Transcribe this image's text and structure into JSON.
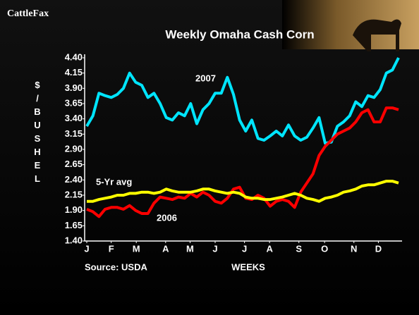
{
  "logo": "CattleFax",
  "chart_data": {
    "type": "line",
    "title": "Weekly Omaha Cash Corn",
    "y_label": "$/BUSHEL",
    "x_label": "WEEKS",
    "source": "Source: USDA",
    "annotations": [
      "2007",
      "2006",
      "5-Yr avg"
    ],
    "x": [
      1,
      2,
      3,
      4,
      5,
      6,
      7,
      8,
      9,
      10,
      11,
      12,
      13,
      14,
      15,
      16,
      17,
      18,
      19,
      20,
      21,
      22,
      23,
      24,
      25,
      26,
      27,
      28,
      29,
      30,
      31,
      32,
      33,
      34,
      35,
      36,
      37,
      38,
      39,
      40,
      41,
      42,
      43,
      44,
      45,
      46,
      47,
      48,
      49,
      50,
      51,
      52
    ],
    "xlim": [
      1,
      52
    ],
    "xticks": [
      {
        "value": 1,
        "label": "J"
      },
      {
        "value": 5.0,
        "label": "F"
      },
      {
        "value": 9.1,
        "label": "M"
      },
      {
        "value": 13.9,
        "label": "A"
      },
      {
        "value": 17.9,
        "label": "M"
      },
      {
        "value": 22.0,
        "label": "J"
      },
      {
        "value": 26.8,
        "label": "J"
      },
      {
        "value": 30.9,
        "label": "A"
      },
      {
        "value": 35.7,
        "label": "S"
      },
      {
        "value": 39.9,
        "label": "O"
      },
      {
        "value": 44.7,
        "label": "N"
      },
      {
        "value": 48.7,
        "label": "D"
      }
    ],
    "ylim": [
      1.4,
      4.4
    ],
    "yticks": [
      {
        "value": 1.4,
        "label": "1.40"
      },
      1.65,
      {
        "value": 1.9,
        "label": "1.90"
      },
      2.15,
      {
        "value": 2.4,
        "label": "2.40"
      },
      2.65,
      {
        "value": 2.9,
        "label": "2.90"
      },
      3.15,
      {
        "value": 3.4,
        "label": "3.40"
      },
      3.65,
      {
        "value": 3.9,
        "label": "3.90"
      },
      4.15,
      {
        "value": 4.4,
        "label": "4.40"
      }
    ],
    "grid": false,
    "series": [
      {
        "color": "#00e5ff",
        "values": [
          3.28,
          3.45,
          3.82,
          3.78,
          3.75,
          3.8,
          3.9,
          4.15,
          4.0,
          3.95,
          3.75,
          3.82,
          3.65,
          3.42,
          3.38,
          3.5,
          3.45,
          3.65,
          3.32,
          3.55,
          3.65,
          3.82,
          3.82,
          4.08,
          3.8,
          3.38,
          3.2,
          3.38,
          3.08,
          3.05,
          3.12,
          3.2,
          3.12,
          3.3,
          3.12,
          3.05,
          3.1,
          3.25,
          3.42,
          3.0,
          3.02,
          3.28,
          3.35,
          3.45,
          3.68,
          3.6,
          3.78,
          3.75,
          3.88,
          4.15,
          4.2,
          4.4
        ]
      },
      {
        "color": "#ff0000",
        "values": [
          1.92,
          1.88,
          1.8,
          1.92,
          1.95,
          1.95,
          1.92,
          1.98,
          1.9,
          1.85,
          1.85,
          2.02,
          2.12,
          2.1,
          2.08,
          2.12,
          2.1,
          2.18,
          2.12,
          2.2,
          2.15,
          2.05,
          2.02,
          2.1,
          2.25,
          2.28,
          2.1,
          2.08,
          2.15,
          2.1,
          1.97,
          2.05,
          2.08,
          2.05,
          1.95,
          2.2,
          2.35,
          2.5,
          2.8,
          2.95,
          3.05,
          3.15,
          3.2,
          3.25,
          3.35,
          3.5,
          3.55,
          3.35,
          3.35,
          3.58,
          3.58,
          3.55
        ]
      },
      {
        "color": "#ffff00",
        "values": [
          2.05,
          2.05,
          2.08,
          2.1,
          2.12,
          2.15,
          2.15,
          2.18,
          2.18,
          2.2,
          2.2,
          2.18,
          2.2,
          2.25,
          2.22,
          2.2,
          2.2,
          2.2,
          2.22,
          2.25,
          2.25,
          2.22,
          2.2,
          2.18,
          2.2,
          2.18,
          2.12,
          2.1,
          2.1,
          2.08,
          2.08,
          2.1,
          2.12,
          2.15,
          2.18,
          2.15,
          2.1,
          2.08,
          2.05,
          2.1,
          2.12,
          2.15,
          2.2,
          2.22,
          2.25,
          2.3,
          2.32,
          2.32,
          2.35,
          2.38,
          2.38,
          2.35
        ]
      }
    ]
  }
}
